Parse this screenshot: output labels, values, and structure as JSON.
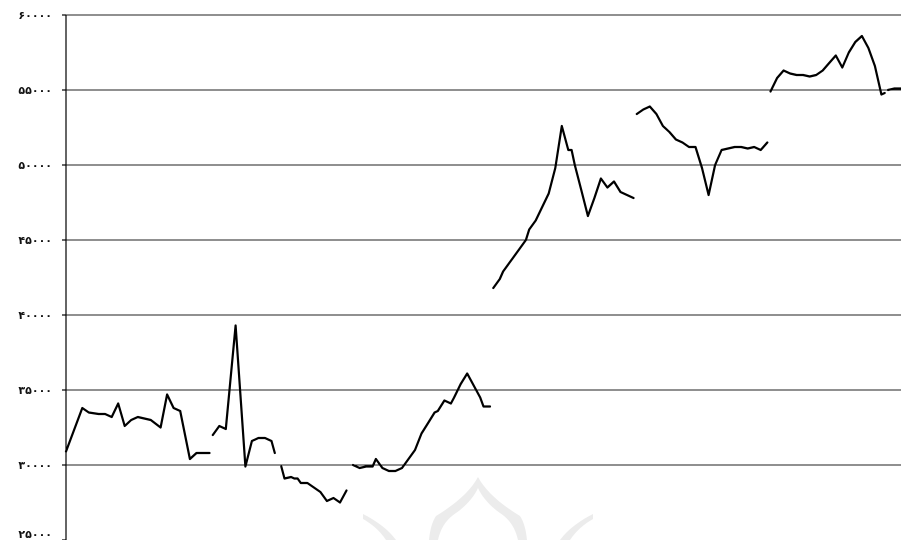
{
  "chart_data": {
    "type": "line",
    "title": "",
    "xlabel": "",
    "ylabel": "",
    "ylim": [
      25000,
      60000
    ],
    "y_ticks": [
      25000,
      30000,
      35000,
      40000,
      45000,
      50000,
      55000,
      60000
    ],
    "y_tick_labels": [
      "۲۵۰۰۰",
      "۳۰۰۰۰",
      "۳۵۰۰۰",
      "۴۰۰۰۰",
      "۴۵۰۰۰",
      "۵۰۰۰۰",
      "۵۵۰۰۰",
      "۶۰۰۰۰"
    ],
    "horizontal_grid": true,
    "legend": "none",
    "line_color": "#000000",
    "segments": [
      {
        "x": [
          0,
          5,
          7,
          10,
          12,
          14,
          16,
          18,
          20,
          22,
          24,
          26,
          29,
          31,
          33,
          35,
          38,
          40,
          42,
          44
        ],
        "y": [
          30900,
          33800,
          33500,
          33400,
          33400,
          33200,
          34100,
          32600,
          33000,
          33200,
          33100,
          33000,
          32500,
          34700,
          33800,
          33600,
          30400,
          30800,
          30800,
          30800
        ]
      },
      {
        "x": [
          45,
          47,
          49,
          52,
          55,
          57,
          59,
          61,
          63,
          64
        ],
        "y": [
          32000,
          32600,
          32400,
          39300,
          29900,
          31600,
          31800,
          31800,
          31600,
          30800
        ]
      },
      {
        "x": [
          66,
          67,
          69,
          70,
          71,
          72,
          74,
          76,
          78,
          80,
          82,
          84,
          86
        ],
        "y": [
          29900,
          29100,
          29200,
          29100,
          29100,
          28800,
          28800,
          28500,
          28200,
          27600,
          27800,
          27500,
          28300
        ]
      },
      {
        "x": [
          88,
          90,
          92,
          94,
          95,
          97,
          99,
          101,
          103,
          105,
          107,
          109,
          111,
          113,
          114,
          116,
          118,
          119,
          121,
          123,
          125,
          127,
          128,
          130
        ],
        "y": [
          30000,
          29800,
          29900,
          29900,
          30400,
          29800,
          29600,
          29600,
          29800,
          30400,
          31000,
          32100,
          32800,
          33500,
          33600,
          34300,
          34100,
          34500,
          35400,
          36100,
          35300,
          34500,
          33900,
          33900
        ]
      },
      {
        "x": [
          131,
          133,
          134,
          136,
          137,
          139,
          141,
          142,
          144,
          146,
          148,
          150,
          152,
          154,
          155,
          156,
          158,
          160,
          162,
          164,
          166,
          168,
          170,
          172,
          174
        ],
        "y": [
          41800,
          42400,
          42900,
          43500,
          43800,
          44400,
          45000,
          45700,
          46300,
          47200,
          48100,
          49800,
          52600,
          51000,
          51000,
          50000,
          48300,
          46600,
          47800,
          49100,
          48500,
          48900,
          48200,
          48000,
          47800
        ]
      },
      {
        "x": [
          175,
          177,
          179,
          181,
          183,
          185,
          187,
          189,
          191,
          193,
          195,
          197,
          199,
          201,
          203,
          205,
          207,
          209,
          211,
          213,
          215
        ],
        "y": [
          53400,
          53700,
          53900,
          53400,
          52600,
          52200,
          51700,
          51500,
          51200,
          51200,
          49800,
          48000,
          50000,
          51000,
          51100,
          51200,
          51200,
          51100,
          51200,
          51000,
          51500
        ]
      },
      {
        "x": [
          216,
          218,
          220,
          222,
          224,
          226,
          228,
          230,
          232,
          234,
          236,
          238,
          240,
          242,
          244,
          246,
          248,
          250,
          251
        ],
        "y": [
          54900,
          55800,
          56300,
          56100,
          56000,
          56000,
          55900,
          56000,
          56300,
          56800,
          57300,
          56500,
          57500,
          58200,
          58600,
          57800,
          56600,
          54700,
          54800
        ]
      },
      {
        "x": [
          252,
          254,
          256
        ],
        "y": [
          55000,
          55100,
          55100
        ]
      }
    ]
  },
  "watermark": {
    "kind": "logo",
    "color": "#ececec"
  }
}
